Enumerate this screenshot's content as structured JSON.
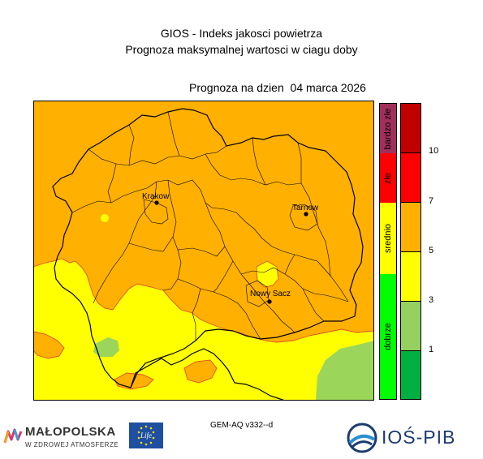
{
  "header": {
    "title": "GIOS - Indeks jakosci powietrza",
    "subtitle": "Prognoza maksymalnej wartosci w ciagu doby",
    "forecast_date": "Prognoza na dzien  04 marca 2026"
  },
  "map": {
    "cities": [
      {
        "name": "Krakow"
      },
      {
        "name": "Tarnow"
      },
      {
        "name": "Nowy Sacz"
      }
    ],
    "colors": {
      "dobrze": "#9bd65a",
      "umiarkowane": "#ffff00",
      "srednio": "#ffb000",
      "boundary": "#000000",
      "contour": "#e05030"
    }
  },
  "legend": {
    "categories": [
      {
        "label": "bardzo złe",
        "color": "#a0305a"
      },
      {
        "label": "złe",
        "color": "#ff0000"
      },
      {
        "label": "srednio",
        "color": "#ffff00"
      },
      {
        "label": "dobrze",
        "color": "#00ff00"
      }
    ],
    "scale_segments": [
      {
        "color": "#c00000"
      },
      {
        "color": "#ff0000"
      },
      {
        "color": "#ffb000"
      },
      {
        "color": "#ffff00"
      },
      {
        "color": "#96d060"
      },
      {
        "color": "#00b040"
      }
    ],
    "ticks": [
      "10",
      "7",
      "5",
      "3",
      "1"
    ]
  },
  "footer": {
    "model_version": "GEM-AQ v332--d",
    "logo_malopolska": "MAŁOPOLSKA",
    "logo_malopolska_sub": "W ZDROWEJ ATMOSFERZE",
    "logo_life": "Life",
    "logo_ios": "IOŚ-PIB"
  }
}
